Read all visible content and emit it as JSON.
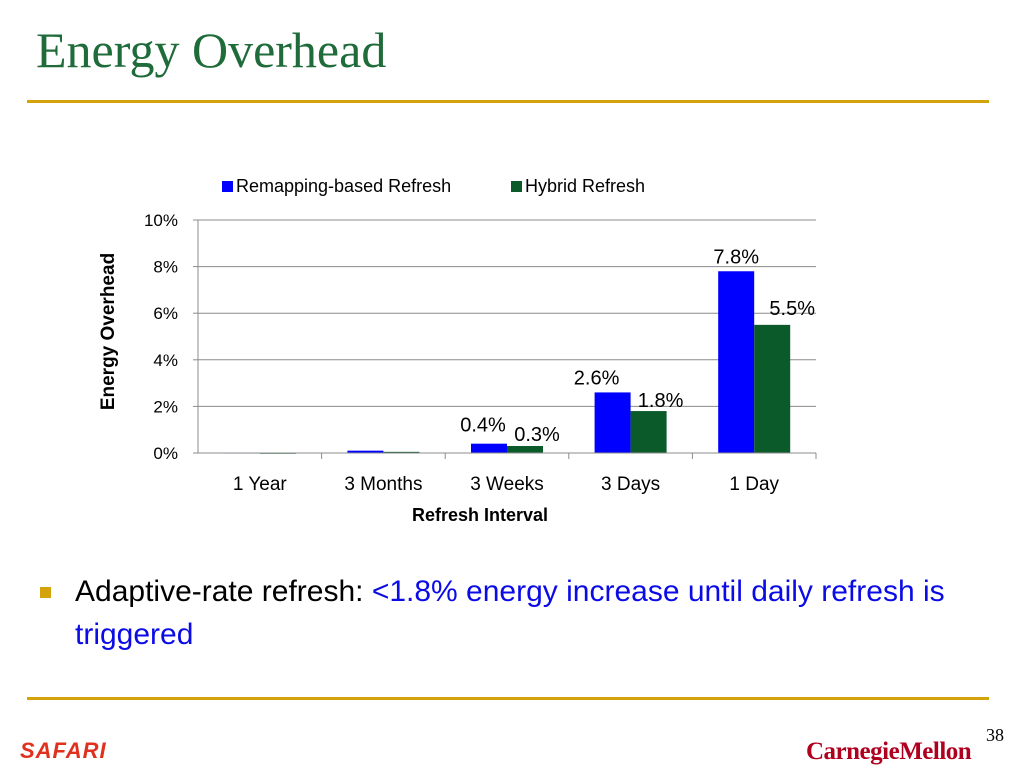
{
  "slide": {
    "title": "Energy Overhead",
    "page_number": "38",
    "bullet_prefix": "Adaptive-rate refresh:",
    "bullet_highlight": "<1.8% energy increase until daily refresh is triggered",
    "logo_left": "SAFARI",
    "logo_right": "CarnegieMellon"
  },
  "colors": {
    "title": "#1f6b3a",
    "rule": "#d4a20a",
    "remapping": "#0000ff",
    "hybrid": "#0b5a2a",
    "highlight": "#0b0be6"
  },
  "chart_data": {
    "type": "bar",
    "categories": [
      "1 Year",
      "3 Months",
      "3 Weeks",
      "3 Days",
      "1 Day"
    ],
    "series": [
      {
        "name": "Remapping-based Refresh",
        "values": [
          0.02,
          0.1,
          0.4,
          2.6,
          7.8
        ],
        "labels": [
          "",
          "",
          "0.4%",
          "2.6%",
          "7.8%"
        ]
      },
      {
        "name": "Hybrid Refresh",
        "values": [
          0.01,
          0.05,
          0.3,
          1.8,
          5.5
        ],
        "labels": [
          "",
          "",
          "0.3%",
          "1.8%",
          "5.5%"
        ]
      }
    ],
    "xlabel": "Refresh Interval",
    "ylabel": "Energy Overhead",
    "ylim": [
      0,
      10
    ],
    "yticks": [
      0,
      2,
      4,
      6,
      8,
      10
    ],
    "ytick_labels": [
      "0%",
      "2%",
      "4%",
      "6%",
      "8%",
      "10%"
    ],
    "grid": true,
    "legend": "top-center"
  }
}
